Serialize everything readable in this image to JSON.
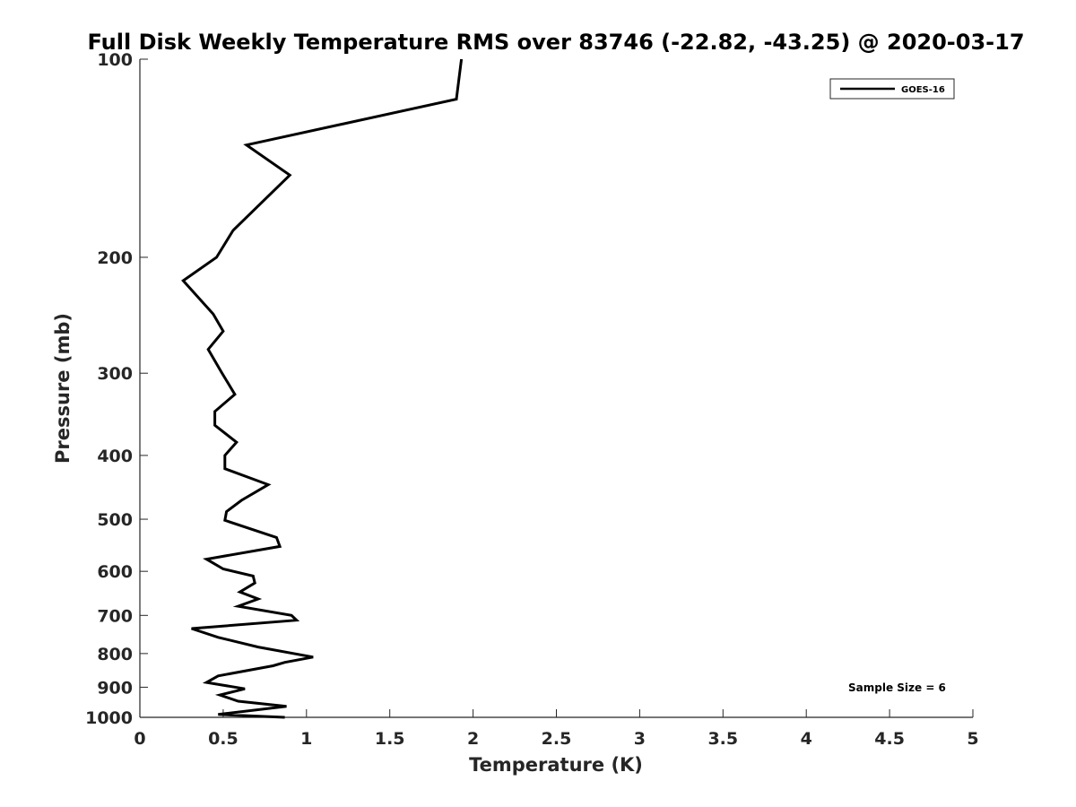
{
  "chart_data": {
    "type": "line",
    "title": "Full Disk Weekly Temperature RMS over 83746 (-22.82, -43.25) @ 2020-03-17",
    "xlabel": "Temperature (K)",
    "ylabel": "Pressure (mb)",
    "xlim": [
      0,
      5
    ],
    "ylim": [
      100,
      1000
    ],
    "y_scale": "log",
    "y_reversed": true,
    "grid": false,
    "legend_position": "top-right",
    "x_ticks": [
      "0",
      "0.5",
      "1",
      "1.5",
      "2",
      "2.5",
      "3",
      "3.5",
      "4",
      "4.5",
      "5"
    ],
    "y_ticks": [
      "100",
      "200",
      "300",
      "400",
      "500",
      "600",
      "700",
      "800",
      "900",
      "1000"
    ],
    "annotation": "Sample Size = 6",
    "series": [
      {
        "name": "GOES-16",
        "color": "#000000",
        "points": [
          [
            1.93,
            100
          ],
          [
            1.9,
            115
          ],
          [
            0.64,
            135
          ],
          [
            0.9,
            150
          ],
          [
            0.56,
            182
          ],
          [
            0.46,
            200
          ],
          [
            0.26,
            217
          ],
          [
            0.44,
            244
          ],
          [
            0.5,
            259
          ],
          [
            0.41,
            276
          ],
          [
            0.49,
            299
          ],
          [
            0.57,
            323
          ],
          [
            0.45,
            343
          ],
          [
            0.45,
            360
          ],
          [
            0.58,
            382
          ],
          [
            0.51,
            400
          ],
          [
            0.51,
            419
          ],
          [
            0.77,
            443
          ],
          [
            0.61,
            468
          ],
          [
            0.52,
            487
          ],
          [
            0.51,
            502
          ],
          [
            0.82,
            533
          ],
          [
            0.84,
            550
          ],
          [
            0.4,
            575
          ],
          [
            0.5,
            595
          ],
          [
            0.68,
            610
          ],
          [
            0.69,
            625
          ],
          [
            0.6,
            645
          ],
          [
            0.71,
            661
          ],
          [
            0.59,
            678
          ],
          [
            0.91,
            700
          ],
          [
            0.94,
            712
          ],
          [
            0.31,
            733
          ],
          [
            0.47,
            756
          ],
          [
            0.71,
            782
          ],
          [
            1.04,
            810
          ],
          [
            0.87,
            825
          ],
          [
            0.8,
            835
          ],
          [
            0.47,
            865
          ],
          [
            0.4,
            885
          ],
          [
            0.63,
            905
          ],
          [
            0.48,
            925
          ],
          [
            0.59,
            945
          ],
          [
            0.88,
            962
          ],
          [
            0.47,
            990
          ],
          [
            0.87,
            1000
          ]
        ]
      }
    ]
  }
}
